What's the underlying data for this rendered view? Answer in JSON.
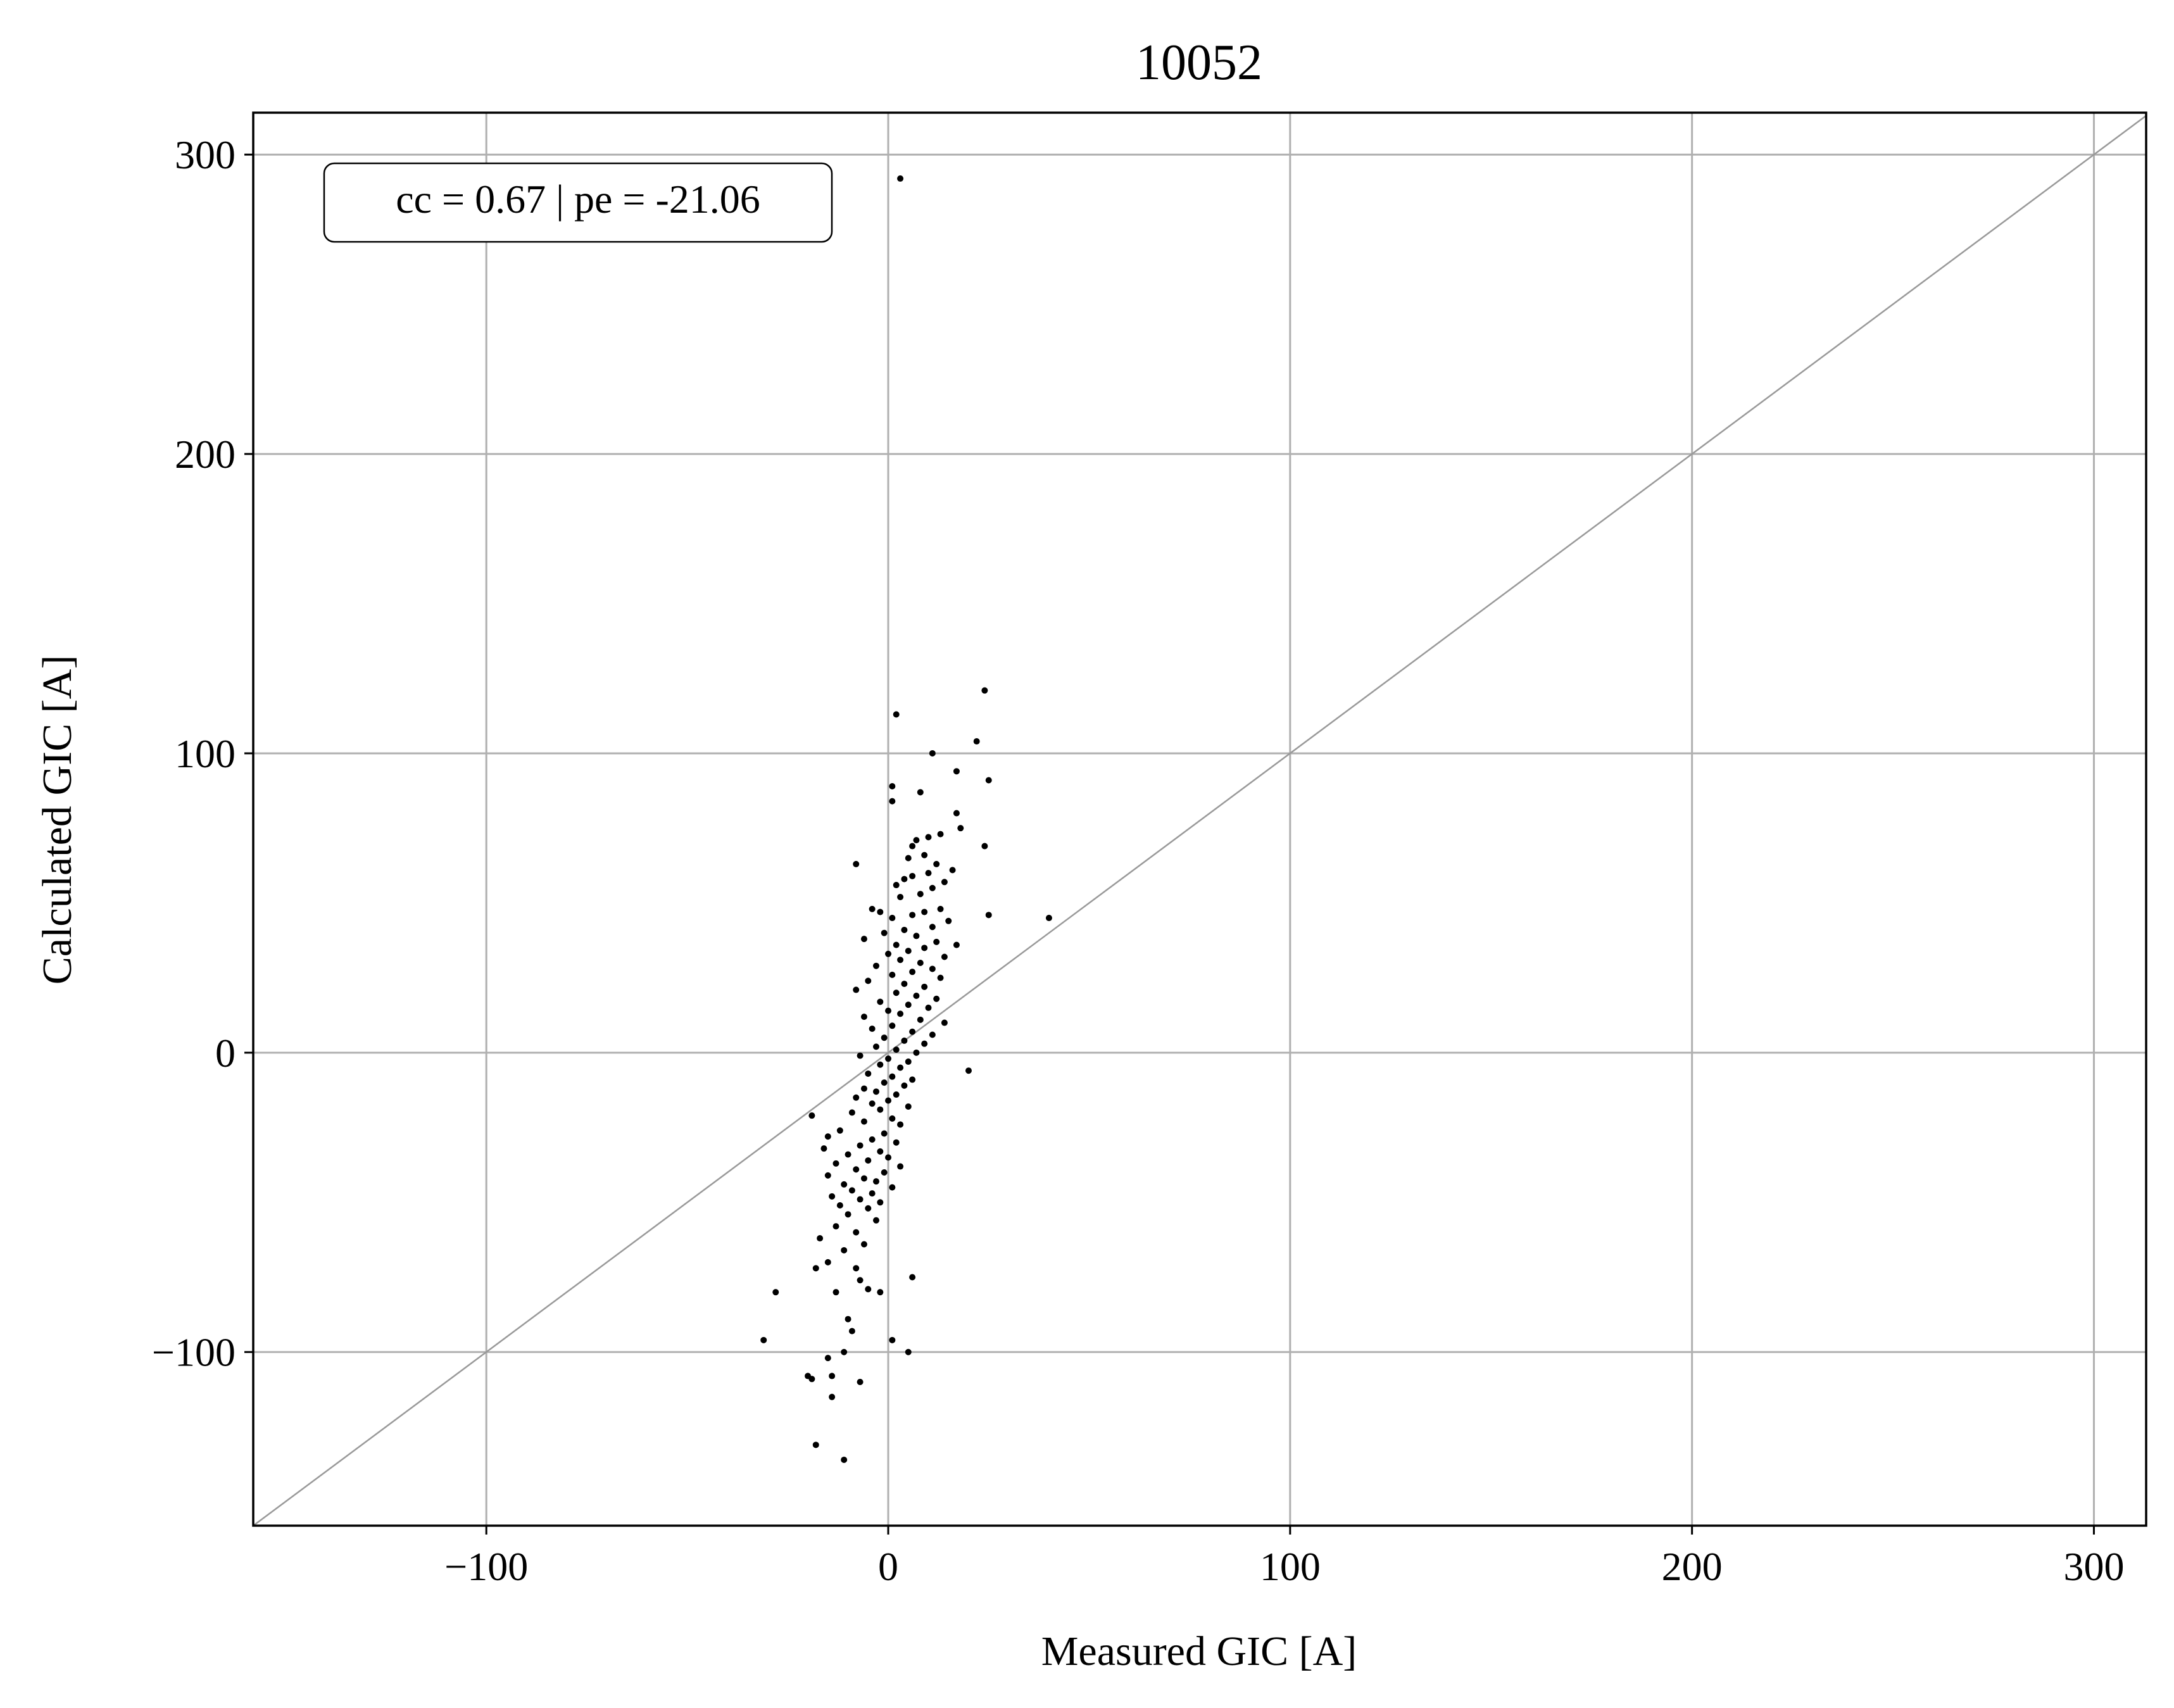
{
  "chart_data": {
    "type": "scatter",
    "title": "10052",
    "xlabel": "Measured GIC [A]",
    "ylabel": "Calculated GIC [A]",
    "xlim": [
      -158,
      313
    ],
    "ylim": [
      -158,
      314
    ],
    "xticks": [
      -100,
      0,
      100,
      200,
      300
    ],
    "yticks": [
      -100,
      0,
      100,
      200,
      300
    ],
    "xtick_labels": [
      "−100",
      "0",
      "100",
      "200",
      "300"
    ],
    "ytick_labels": [
      "−100",
      "0",
      "100",
      "200",
      "300"
    ],
    "grid": true,
    "reference_line": {
      "slope": 1,
      "intercept": 0,
      "color": "#999999"
    },
    "annotation": "cc = 0.67 | pe = -21.06",
    "annotation_position": "top-left",
    "marker_color": "#000000",
    "series": [
      {
        "points": [
          [
            3,
            292
          ],
          [
            24,
            121
          ],
          [
            2,
            113
          ],
          [
            22,
            104
          ],
          [
            11,
            100
          ],
          [
            17,
            94
          ],
          [
            25,
            91
          ],
          [
            1,
            89
          ],
          [
            1,
            84
          ],
          [
            8,
            87
          ],
          [
            17,
            80
          ],
          [
            18,
            75
          ],
          [
            10,
            72
          ],
          [
            13,
            73
          ],
          [
            7,
            71
          ],
          [
            6,
            69
          ],
          [
            24,
            69
          ],
          [
            9,
            66
          ],
          [
            5,
            65
          ],
          [
            12,
            63
          ],
          [
            -8,
            63
          ],
          [
            16,
            61
          ],
          [
            10,
            60
          ],
          [
            6,
            59
          ],
          [
            4,
            58
          ],
          [
            14,
            57
          ],
          [
            2,
            56
          ],
          [
            11,
            55
          ],
          [
            8,
            53
          ],
          [
            3,
            52
          ],
          [
            -4,
            48
          ],
          [
            -2,
            47
          ],
          [
            25,
            46
          ],
          [
            40,
            45
          ],
          [
            13,
            48
          ],
          [
            9,
            47
          ],
          [
            6,
            46
          ],
          [
            1,
            45
          ],
          [
            15,
            44
          ],
          [
            11,
            42
          ],
          [
            4,
            41
          ],
          [
            -1,
            40
          ],
          [
            7,
            39
          ],
          [
            -6,
            38
          ],
          [
            12,
            37
          ],
          [
            2,
            36
          ],
          [
            17,
            36
          ],
          [
            9,
            35
          ],
          [
            5,
            34
          ],
          [
            0,
            33
          ],
          [
            14,
            32
          ],
          [
            3,
            31
          ],
          [
            8,
            30
          ],
          [
            -3,
            29
          ],
          [
            11,
            28
          ],
          [
            6,
            27
          ],
          [
            1,
            26
          ],
          [
            13,
            25
          ],
          [
            -5,
            24
          ],
          [
            4,
            23
          ],
          [
            9,
            22
          ],
          [
            -8,
            21
          ],
          [
            2,
            20
          ],
          [
            7,
            19
          ],
          [
            12,
            18
          ],
          [
            -2,
            17
          ],
          [
            5,
            16
          ],
          [
            10,
            15
          ],
          [
            0,
            14
          ],
          [
            3,
            13
          ],
          [
            -6,
            12
          ],
          [
            8,
            11
          ],
          [
            14,
            10
          ],
          [
            1,
            9
          ],
          [
            -4,
            8
          ],
          [
            6,
            7
          ],
          [
            11,
            6
          ],
          [
            -1,
            5
          ],
          [
            4,
            4
          ],
          [
            9,
            3
          ],
          [
            -3,
            2
          ],
          [
            2,
            1
          ],
          [
            7,
            0
          ],
          [
            -7,
            -1
          ],
          [
            0,
            -2
          ],
          [
            5,
            -3
          ],
          [
            -2,
            -4
          ],
          [
            3,
            -5
          ],
          [
            20,
            -6
          ],
          [
            -5,
            -7
          ],
          [
            1,
            -8
          ],
          [
            6,
            -9
          ],
          [
            -1,
            -10
          ],
          [
            4,
            -11
          ],
          [
            -6,
            -12
          ],
          [
            -3,
            -13
          ],
          [
            2,
            -14
          ],
          [
            -8,
            -15
          ],
          [
            0,
            -16
          ],
          [
            -4,
            -17
          ],
          [
            5,
            -18
          ],
          [
            -2,
            -19
          ],
          [
            -9,
            -20
          ],
          [
            -19,
            -21
          ],
          [
            1,
            -22
          ],
          [
            -6,
            -23
          ],
          [
            3,
            -24
          ],
          [
            -12,
            -26
          ],
          [
            -1,
            -27
          ],
          [
            -15,
            -28
          ],
          [
            -4,
            -29
          ],
          [
            2,
            -30
          ],
          [
            -7,
            -31
          ],
          [
            -16,
            -32
          ],
          [
            -2,
            -33
          ],
          [
            -10,
            -34
          ],
          [
            0,
            -35
          ],
          [
            -5,
            -36
          ],
          [
            -13,
            -37
          ],
          [
            3,
            -38
          ],
          [
            -8,
            -39
          ],
          [
            -1,
            -40
          ],
          [
            -15,
            -41
          ],
          [
            -6,
            -42
          ],
          [
            -3,
            -43
          ],
          [
            -11,
            -44
          ],
          [
            1,
            -45
          ],
          [
            -9,
            -46
          ],
          [
            -4,
            -47
          ],
          [
            -14,
            -48
          ],
          [
            -7,
            -49
          ],
          [
            -2,
            -50
          ],
          [
            -12,
            -51
          ],
          [
            -5,
            -52
          ],
          [
            -10,
            -54
          ],
          [
            -3,
            -56
          ],
          [
            -13,
            -58
          ],
          [
            -8,
            -60
          ],
          [
            -17,
            -62
          ],
          [
            -6,
            -64
          ],
          [
            -11,
            -66
          ],
          [
            -15,
            -70
          ],
          [
            -8,
            -72
          ],
          [
            -18,
            -72
          ],
          [
            -7,
            -76
          ],
          [
            6,
            -75
          ],
          [
            -5,
            -79
          ],
          [
            -13,
            -80
          ],
          [
            -28,
            -80
          ],
          [
            -2,
            -80
          ],
          [
            -10,
            -89
          ],
          [
            -9,
            -93
          ],
          [
            -31,
            -96
          ],
          [
            1,
            -96
          ],
          [
            -11,
            -100
          ],
          [
            5,
            -100
          ],
          [
            -15,
            -102
          ],
          [
            -20,
            -108
          ],
          [
            -19,
            -109
          ],
          [
            -14,
            -108
          ],
          [
            -7,
            -110
          ],
          [
            -14,
            -115
          ],
          [
            -18,
            -131
          ],
          [
            -11,
            -136
          ]
        ]
      }
    ]
  }
}
